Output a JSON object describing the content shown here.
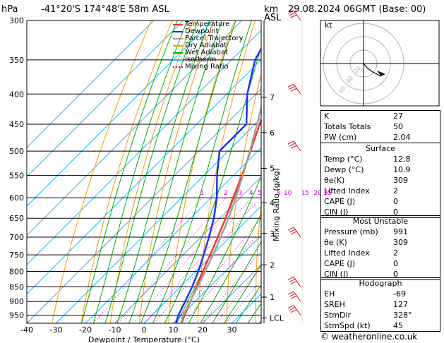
{
  "header": {
    "hpa_label": "hPa",
    "location": "-41°20'S  174°48'E  58m  ASL",
    "km_label": "km",
    "asl_label": "ASL",
    "datetime": "29.08.2024  06GMT  (Base: 00)"
  },
  "legend": [
    {
      "label": "Temperature",
      "color": "#ff3030",
      "style": "solid"
    },
    {
      "label": "Dewpoint",
      "color": "#1530ff",
      "style": "solid"
    },
    {
      "label": "Parcel Trajectory",
      "color": "#a0a0a0",
      "style": "solid"
    },
    {
      "label": "Dry Adiabat",
      "color": "#ff9a00",
      "style": "solid"
    },
    {
      "label": "Wet Adiabat",
      "color": "#00b000",
      "style": "solid"
    },
    {
      "label": "Isotherm",
      "color": "#20b8ff",
      "style": "solid"
    },
    {
      "label": "Mixing Ratio",
      "color": "#d000d0",
      "style": "dotted"
    }
  ],
  "chart_data": {
    "type": "line",
    "xlabel": "Dewpoint / Temperature (°C)",
    "ylabel": "hPa",
    "right_ylabel": "Mixing Ratio (g/kg)",
    "xlim": [
      -40,
      40
    ],
    "ylim": [
      300,
      980
    ],
    "y_scale": "log",
    "x_ticks": [
      "-40",
      "-30",
      "-20",
      "-10",
      "0",
      "10",
      "20",
      "30"
    ],
    "pressure_levels": [
      300,
      350,
      400,
      450,
      500,
      550,
      600,
      650,
      700,
      750,
      800,
      850,
      900,
      950
    ],
    "km_ticks": [
      {
        "km": "1",
        "p": 885
      },
      {
        "km": "2",
        "p": 780
      },
      {
        "km": "3",
        "p": 690
      },
      {
        "km": "4",
        "p": 612
      },
      {
        "km": "5",
        "p": 535
      },
      {
        "km": "6",
        "p": 465
      },
      {
        "km": "7",
        "p": 405
      },
      {
        "km": "LCL",
        "p": 960
      }
    ],
    "mixing_ratio_labels": [
      "1",
      "2",
      "3",
      "4",
      "5",
      "8",
      "10",
      "15",
      "20",
      "25"
    ],
    "mixing_ratio_values": [
      1,
      2,
      3,
      4,
      5,
      8,
      10,
      15,
      20,
      25
    ],
    "series": [
      {
        "name": "Temperature",
        "color": "#ff3030",
        "points": [
          [
            980,
            12.8
          ],
          [
            950,
            11.2
          ],
          [
            900,
            8.4
          ],
          [
            850,
            5.6
          ],
          [
            800,
            2.4
          ],
          [
            750,
            -0.8
          ],
          [
            700,
            -4.2
          ],
          [
            650,
            -8.0
          ],
          [
            600,
            -12.4
          ],
          [
            550,
            -17.0
          ],
          [
            500,
            -22.4
          ],
          [
            450,
            -28.5
          ],
          [
            400,
            -35.2
          ],
          [
            350,
            -42.5
          ],
          [
            300,
            -49.5
          ]
        ]
      },
      {
        "name": "Dewpoint",
        "color": "#1530ff",
        "points": [
          [
            980,
            10.9
          ],
          [
            950,
            9.0
          ],
          [
            900,
            6.6
          ],
          [
            850,
            4.0
          ],
          [
            800,
            0.8
          ],
          [
            750,
            -3.0
          ],
          [
            700,
            -7.2
          ],
          [
            650,
            -12.0
          ],
          [
            600,
            -18.0
          ],
          [
            550,
            -25.5
          ],
          [
            500,
            -33.0
          ],
          [
            450,
            -33.0
          ],
          [
            400,
            -43.0
          ],
          [
            350,
            -52.0
          ],
          [
            300,
            -58.0
          ]
        ]
      },
      {
        "name": "Parcel Trajectory",
        "color": "#a0a0a0",
        "points": [
          [
            980,
            12.8
          ],
          [
            960,
            11.2
          ],
          [
            900,
            8.3
          ],
          [
            850,
            5.9
          ],
          [
            800,
            3.2
          ],
          [
            750,
            0.2
          ],
          [
            700,
            -3.2
          ],
          [
            650,
            -7.0
          ],
          [
            600,
            -11.5
          ],
          [
            550,
            -16.7
          ],
          [
            500,
            -22.6
          ],
          [
            450,
            -29.4
          ],
          [
            400,
            -37.0
          ],
          [
            350,
            -45.5
          ],
          [
            300,
            -54.0
          ]
        ]
      }
    ],
    "wind_barb_levels": [
      300,
      400,
      500,
      700,
      850,
      900,
      950
    ]
  },
  "hodograph": {
    "label": "kt",
    "ring_labels": [
      "20",
      "40",
      "60"
    ]
  },
  "indices_table": {
    "rows": [
      {
        "label": "K",
        "value": "27"
      },
      {
        "label": "Totals Totals",
        "value": "50"
      },
      {
        "label": "PW (cm)",
        "value": "2.04"
      }
    ]
  },
  "surface": {
    "title": "Surface",
    "rows": [
      {
        "label": "Temp (°C)",
        "value": "12.8"
      },
      {
        "label": "Dewp (°C)",
        "value": "10.9"
      },
      {
        "label": "θe(K)",
        "value": "309"
      },
      {
        "label": "Lifted Index",
        "value": "2"
      },
      {
        "label": "CAPE (J)",
        "value": "0"
      },
      {
        "label": "CIN (J)",
        "value": "0"
      }
    ]
  },
  "most_unstable": {
    "title": "Most Unstable",
    "rows": [
      {
        "label": "Pressure (mb)",
        "value": "991"
      },
      {
        "label": "θe (K)",
        "value": "309"
      },
      {
        "label": "Lifted Index",
        "value": "2"
      },
      {
        "label": "CAPE (J)",
        "value": "0"
      },
      {
        "label": "CIN (J)",
        "value": "0"
      }
    ]
  },
  "hodograph_table": {
    "title": "Hodograph",
    "rows": [
      {
        "label": "EH",
        "value": "-69"
      },
      {
        "label": "SREH",
        "value": "127"
      },
      {
        "label": "StmDir",
        "value": "328°"
      },
      {
        "label": "StmSpd (kt)",
        "value": "45"
      }
    ]
  },
  "footer": "© weatheronline.co.uk"
}
